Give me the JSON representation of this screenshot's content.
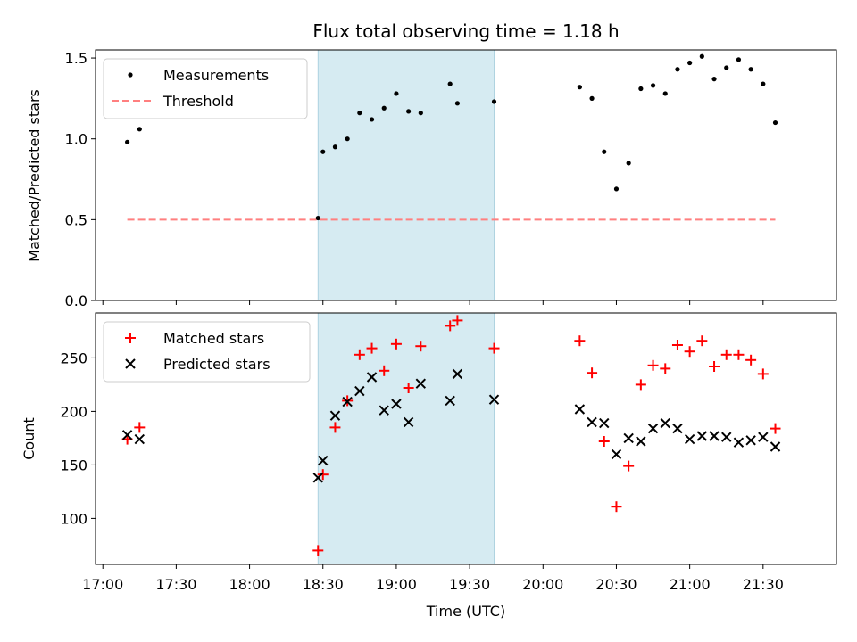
{
  "chart_data": [
    {
      "type": "scatter",
      "title": "Flux total observing time = 1.18 h",
      "ylabel": "Matched/Predicted stars",
      "xlabel": "",
      "ylim": [
        0,
        1.55
      ],
      "yticks": [
        "0.0",
        "0.5",
        "1.0",
        "1.5"
      ],
      "grid": false,
      "legend": "top-left",
      "shaded_interval": [
        "18:28",
        "19:40"
      ],
      "series": [
        {
          "name": "Measurements",
          "marker": "dot",
          "color": "#000000",
          "x": [
            "17:10",
            "17:15",
            "18:28",
            "18:30",
            "18:35",
            "18:40",
            "18:45",
            "18:50",
            "18:55",
            "19:00",
            "19:05",
            "19:10",
            "19:22",
            "19:25",
            "19:40",
            "20:15",
            "20:20",
            "20:25",
            "20:30",
            "20:35",
            "20:40",
            "20:45",
            "20:50",
            "20:55",
            "21:00",
            "21:05",
            "21:10",
            "21:15",
            "21:20",
            "21:25",
            "21:30",
            "21:35"
          ],
          "values": [
            0.98,
            1.06,
            0.51,
            0.92,
            0.95,
            1.0,
            1.16,
            1.12,
            1.19,
            1.28,
            1.17,
            1.16,
            1.34,
            1.22,
            1.23,
            1.32,
            1.25,
            0.92,
            0.69,
            0.85,
            1.31,
            1.33,
            1.28,
            1.43,
            1.47,
            1.51,
            1.37,
            1.44,
            1.49,
            1.43,
            1.34,
            1.1
          ]
        },
        {
          "name": "Threshold",
          "style": "dashed",
          "color": "#ff7f7f",
          "x": [
            "17:10",
            "21:35"
          ],
          "values": [
            0.5,
            0.5
          ]
        }
      ]
    },
    {
      "type": "scatter",
      "title": "",
      "ylabel": "Count",
      "xlabel": "Time (UTC)",
      "ylim": [
        57,
        292
      ],
      "yticks": [
        "100",
        "150",
        "200",
        "250"
      ],
      "xticks": [
        "17:00",
        "17:30",
        "18:00",
        "18:30",
        "19:00",
        "19:30",
        "20:00",
        "20:30",
        "21:00",
        "21:30"
      ],
      "xlim": [
        "16:57",
        "22:00"
      ],
      "grid": false,
      "legend": "top-left",
      "shaded_interval": [
        "18:28",
        "19:40"
      ],
      "x": [
        "17:10",
        "17:15",
        "18:28",
        "18:30",
        "18:35",
        "18:40",
        "18:45",
        "18:50",
        "18:55",
        "19:00",
        "19:05",
        "19:10",
        "19:22",
        "19:25",
        "19:40",
        "20:15",
        "20:20",
        "20:25",
        "20:30",
        "20:35",
        "20:40",
        "20:45",
        "20:50",
        "20:55",
        "21:00",
        "21:05",
        "21:10",
        "21:15",
        "21:20",
        "21:25",
        "21:30",
        "21:35"
      ],
      "series": [
        {
          "name": "Matched stars",
          "marker": "plus",
          "color": "#ff0000",
          "values": [
            174,
            185,
            70,
            141,
            185,
            210,
            253,
            259,
            238,
            263,
            222,
            261,
            280,
            285,
            259,
            266,
            236,
            172,
            111,
            149,
            225,
            243,
            240,
            262,
            256,
            266,
            242,
            253,
            253,
            248,
            235,
            184
          ]
        },
        {
          "name": "Predicted stars",
          "marker": "x",
          "color": "#000000",
          "values": [
            178,
            174,
            138,
            154,
            196,
            209,
            219,
            232,
            201,
            207,
            190,
            226,
            210,
            235,
            211,
            202,
            190,
            189,
            160,
            175,
            172,
            184,
            189,
            184,
            174,
            177,
            177,
            176,
            171,
            173,
            176,
            167
          ]
        }
      ]
    }
  ]
}
